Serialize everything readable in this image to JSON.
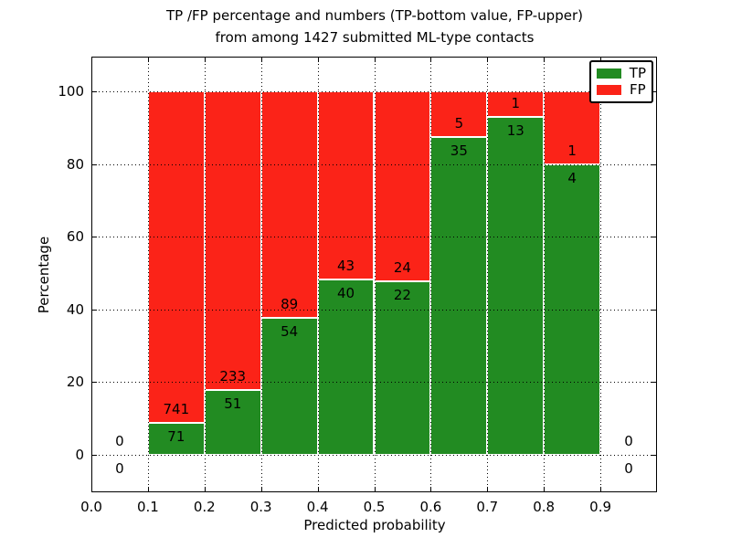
{
  "figure": {
    "title_line1": "TP /FP percentage and numbers (TP-bottom value, FP-upper)",
    "title_line2": "from among 1427 submitted ML-type contacts"
  },
  "colors": {
    "tp_green": "#228b22",
    "fp_red": "#fb2318",
    "grid": "#000000",
    "background": "#ffffff",
    "text": "#000000"
  },
  "chart_data": {
    "type": "bar",
    "stacked": true,
    "units": "percent",
    "title": "TP /FP percentage and numbers (TP-bottom value, FP-upper) from among 1427 submitted ML-type contacts",
    "xlabel": "Predicted probability",
    "ylabel": "Percentage",
    "xlim": [
      0.0,
      1.0
    ],
    "ylim": [
      -10,
      110
    ],
    "xticks": [
      "0.0",
      "0.1",
      "0.2",
      "0.3",
      "0.4",
      "0.5",
      "0.6",
      "0.7",
      "0.8",
      "0.9"
    ],
    "yticks": [
      0,
      20,
      40,
      60,
      80,
      100
    ],
    "grid": true,
    "grid_style": "dotted",
    "total_contacts": 1427,
    "legend": {
      "position": "upper right",
      "entries": [
        {
          "label": "TP",
          "color": "#228b22"
        },
        {
          "label": "FP",
          "color": "#fb2318"
        }
      ]
    },
    "bin_width": 0.1,
    "bins": [
      {
        "x0": 0.0,
        "tp_count": 0,
        "fp_count": 0
      },
      {
        "x0": 0.1,
        "tp_count": 71,
        "fp_count": 741
      },
      {
        "x0": 0.2,
        "tp_count": 51,
        "fp_count": 233
      },
      {
        "x0": 0.3,
        "tp_count": 54,
        "fp_count": 89
      },
      {
        "x0": 0.4,
        "tp_count": 40,
        "fp_count": 43
      },
      {
        "x0": 0.5,
        "tp_count": 22,
        "fp_count": 24
      },
      {
        "x0": 0.6,
        "tp_count": 35,
        "fp_count": 5
      },
      {
        "x0": 0.7,
        "tp_count": 13,
        "fp_count": 1
      },
      {
        "x0": 0.8,
        "tp_count": 4,
        "fp_count": 1
      },
      {
        "x0": 0.9,
        "tp_count": 0,
        "fp_count": 0
      }
    ]
  }
}
